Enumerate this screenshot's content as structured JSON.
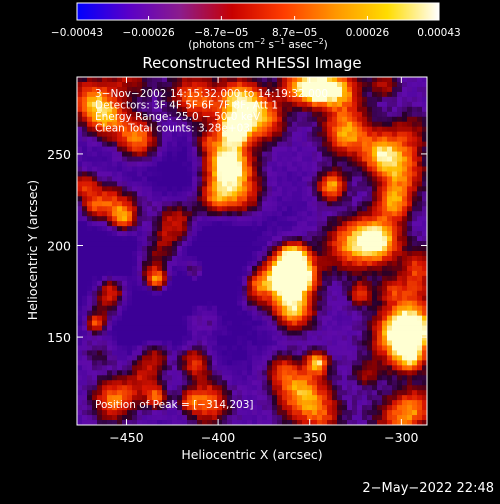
{
  "chart_data": {
    "type": "heatmap",
    "title": "Reconstructed RHESSI Image",
    "xlabel": "Heliocentric X (arcsec)",
    "ylabel": "Heliocentric Y (arcsec)",
    "xlim": [
      -477,
      -286
    ],
    "ylim": [
      102,
      292
    ],
    "x_ticks": [
      -450,
      -400,
      -350,
      -300
    ],
    "y_ticks": [
      150,
      200,
      250
    ],
    "x_tick_labels": [
      "−450",
      "−400",
      "−350",
      "−300"
    ],
    "y_tick_labels": [
      "150",
      "200",
      "250"
    ],
    "colorbar": {
      "range": [
        -0.00043,
        0.00043
      ],
      "tick_values": [
        -0.00043,
        -0.00026,
        -8.7e-05,
        8.7e-05,
        0.00026,
        0.00043
      ],
      "tick_labels": [
        "−0.00043",
        "−0.00026",
        "−8.7e−05",
        "8.7e−05",
        "0.00026",
        "0.00043"
      ],
      "unit_parts": [
        "(photons cm",
        "−2",
        " s",
        "−1",
        " asec",
        "−2",
        ")"
      ],
      "colors": [
        "#0000ff",
        "#5a00c8",
        "#8c1c8c",
        "#c80000",
        "#ff3c00",
        "#ff9600",
        "#ffdc00",
        "#ffffff"
      ]
    },
    "annotations": [
      "3−Nov−2002 14:15:32.000 to 14:19:32.000",
      "Detectors: 3F 4F 5F 6F 7F 8F, Att 1",
      "Energy Range: 25.0 − 50.0 keV",
      "Clean     Total counts: 3.28e+03"
    ],
    "peak_label": "Position of Peak = [−314,203]",
    "peak_position": [
      -314,
      203
    ],
    "total_counts": 3280,
    "energy_range_kev": [
      25.0,
      50.0
    ]
  },
  "footer": {
    "timestamp": "2−May−2022 22:48"
  }
}
